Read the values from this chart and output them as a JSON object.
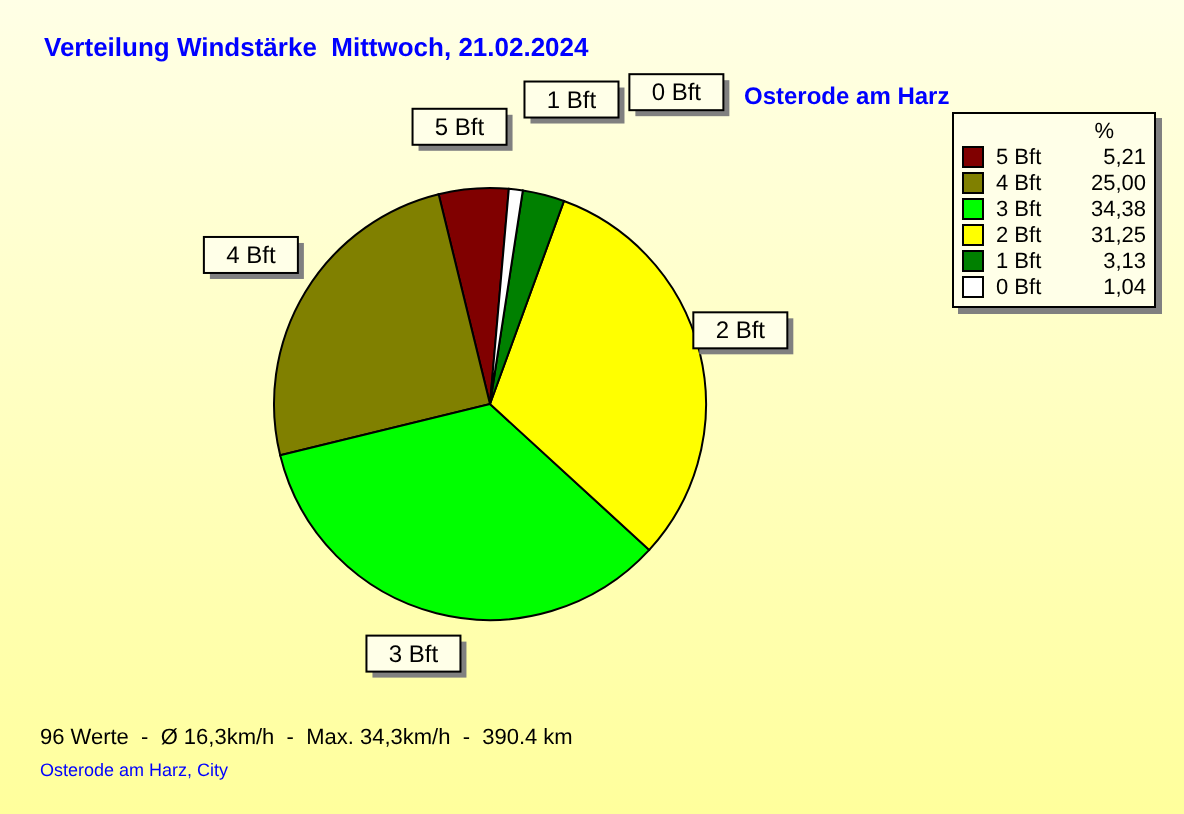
{
  "chart_data": {
    "type": "pie",
    "title": "Verteilung Windstärke  Mittwoch, 21.02.2024",
    "subtitle": "Osterode am Harz",
    "categories": [
      "5 Bft",
      "4 Bft",
      "3 Bft",
      "2 Bft",
      "1 Bft",
      "0 Bft"
    ],
    "values": [
      5.21,
      25.0,
      34.38,
      31.25,
      3.13,
      1.04
    ],
    "colors": [
      "#800000",
      "#808000",
      "#00ff00",
      "#ffff00",
      "#008000",
      "#ffffff"
    ],
    "value_labels": [
      "5,21",
      "25,00",
      "34,38",
      "31,25",
      "3,13",
      "1,04"
    ],
    "legend_title": "%",
    "legend": "top right",
    "annotations": [
      "96 Werte  -  Ø 16,3km/h  -  Max. 34,3km/h  -  390.4 km",
      "Osterode am Harz, City"
    ]
  }
}
